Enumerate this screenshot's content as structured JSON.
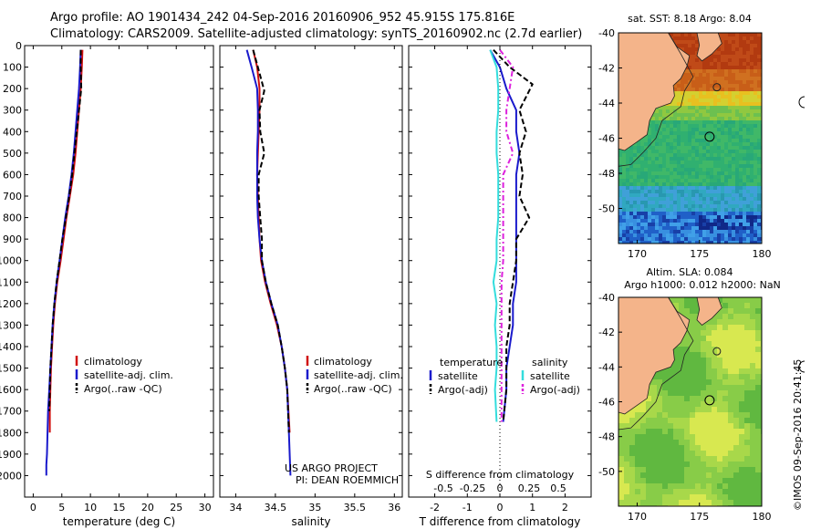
{
  "header": {
    "title_line1": "Argo profile: AO 1901434_242 04-Sep-2016 20160906_952 45.915S 175.816E",
    "title_line2": "Climatology: CARS2009. Satellite-adjusted climatology: synTS_20160902.nc (2.7d earlier)"
  },
  "credits": {
    "line1": "US ARGO PROJECT",
    "line2": "PI: DEAN ROEMMICH"
  },
  "stamp": "©IMOS 09-Sep-2016 20:41:45",
  "colors": {
    "climatology": "#d01010",
    "satellite": "#1a1acc",
    "argo": "#000000",
    "cyan": "#33dddd",
    "magenta": "#dd22dd",
    "land": "#f4b48a"
  },
  "chart_data": [
    {
      "id": "temperature",
      "type": "line",
      "xlabel": "temperature (deg C)",
      "xlim": [
        -1.5,
        31.5
      ],
      "xticks": [
        0,
        5,
        10,
        15,
        20,
        25,
        30
      ],
      "ylim": [
        2100,
        0
      ],
      "yticks": [
        0,
        100,
        200,
        300,
        400,
        500,
        600,
        700,
        800,
        900,
        1000,
        1100,
        1200,
        1300,
        1400,
        1500,
        1600,
        1700,
        1800,
        1900,
        2000
      ],
      "legend": [
        "climatology",
        "satellite-adj. clim.",
        "Argo(..raw -QC)"
      ],
      "series": [
        {
          "name": "climatology",
          "color": "red",
          "style": "solid",
          "x": [
            8.6,
            8.5,
            8.3,
            8.0,
            7.7,
            7.4,
            7.0,
            6.4,
            5.8,
            5.3,
            4.8,
            4.2,
            3.8,
            3.5,
            3.3,
            3.1,
            3.0,
            2.9,
            2.9
          ],
          "y": [
            20,
            100,
            200,
            300,
            400,
            500,
            600,
            700,
            800,
            900,
            1000,
            1100,
            1200,
            1300,
            1400,
            1500,
            1600,
            1700,
            1800
          ]
        },
        {
          "name": "satellite-adj. clim.",
          "color": "blue",
          "style": "solid",
          "x": [
            8.3,
            8.2,
            8.0,
            7.7,
            7.4,
            7.1,
            6.7,
            6.2,
            5.6,
            5.1,
            4.6,
            4.1,
            3.7,
            3.4,
            3.2,
            3.0,
            2.8,
            2.6,
            2.5,
            2.4,
            2.3,
            2.3
          ],
          "y": [
            20,
            100,
            200,
            300,
            400,
            500,
            600,
            700,
            800,
            900,
            1000,
            1100,
            1200,
            1300,
            1400,
            1500,
            1600,
            1700,
            1800,
            1900,
            1950,
            2000
          ]
        },
        {
          "name": "Argo(..raw -QC)",
          "color": "black",
          "style": "dash",
          "x": [
            8.3,
            8.3,
            8.4,
            8.0,
            7.6,
            7.2,
            6.8,
            6.3,
            5.7,
            5.1,
            4.6,
            4.1,
            3.7,
            3.4,
            3.2,
            3.0,
            2.9,
            2.8
          ],
          "y": [
            20,
            100,
            200,
            300,
            400,
            500,
            600,
            700,
            800,
            900,
            1000,
            1100,
            1200,
            1300,
            1400,
            1500,
            1600,
            1700
          ]
        }
      ]
    },
    {
      "id": "salinity",
      "type": "line",
      "xlabel": "salinity",
      "xlim": [
        33.8,
        36.1
      ],
      "xticks": [
        34,
        34.5,
        35,
        35.5,
        36
      ],
      "ylim": [
        2100,
        0
      ],
      "legend": [
        "climatology",
        "satellite-adj. clim.",
        "Argo(..raw -QC)"
      ],
      "series": [
        {
          "name": "climatology",
          "color": "red",
          "style": "solid",
          "x": [
            34.22,
            34.27,
            34.3,
            34.3,
            34.29,
            34.28,
            34.27,
            34.28,
            34.29,
            34.3,
            34.32,
            34.37,
            34.44,
            34.52,
            34.58,
            34.62,
            34.65,
            34.68
          ],
          "y": [
            20,
            100,
            200,
            300,
            400,
            500,
            600,
            700,
            800,
            900,
            1000,
            1100,
            1200,
            1300,
            1400,
            1500,
            1600,
            1800
          ]
        },
        {
          "name": "satellite-adj. clim.",
          "color": "blue",
          "style": "solid",
          "x": [
            34.14,
            34.2,
            34.27,
            34.28,
            34.28,
            34.27,
            34.27,
            34.27,
            34.28,
            34.3,
            34.33,
            34.38,
            34.45,
            34.53,
            34.58,
            34.62,
            34.65,
            34.67,
            34.69
          ],
          "y": [
            20,
            100,
            200,
            300,
            400,
            500,
            600,
            700,
            800,
            900,
            1000,
            1100,
            1200,
            1300,
            1400,
            1500,
            1600,
            1800,
            2000
          ]
        },
        {
          "name": "Argo(..raw -QC)",
          "color": "black",
          "style": "dash",
          "x": [
            34.22,
            34.28,
            34.36,
            34.3,
            34.31,
            34.36,
            34.29,
            34.29,
            34.31,
            34.33,
            34.33,
            34.38,
            34.45,
            34.53,
            34.58,
            34.62,
            34.65,
            34.67
          ],
          "y": [
            20,
            100,
            210,
            300,
            400,
            500,
            600,
            700,
            800,
            900,
            1000,
            1100,
            1200,
            1300,
            1400,
            1500,
            1600,
            1800
          ]
        }
      ]
    },
    {
      "id": "difference",
      "type": "line",
      "xlabel": "T difference from climatology",
      "xlabel_top": "S difference from climatology",
      "xlim": [
        -2.8,
        2.8
      ],
      "xticks": [
        -2,
        -1,
        0,
        1,
        2
      ],
      "s_ticks": [
        "-0.5",
        "-0.25",
        "0",
        "0.25",
        "0.5"
      ],
      "ylim": [
        2100,
        0
      ],
      "legend_heading_t": "temperature",
      "legend_heading_s": "salinity",
      "legend": [
        "satellite",
        "Argo(-adj)",
        "satellite",
        "Argo(-adj)"
      ],
      "series": [
        {
          "name": "satellite",
          "group": "temperature",
          "color": "blue",
          "style": "solid",
          "x": [
            -0.3,
            0.0,
            0.2,
            0.5,
            0.5,
            0.6,
            0.5,
            0.5,
            0.5,
            0.5,
            0.5,
            0.5,
            0.4,
            0.4,
            0.3,
            0.2,
            0.2,
            0.1
          ],
          "y": [
            20,
            100,
            200,
            300,
            400,
            500,
            600,
            700,
            800,
            900,
            1000,
            1100,
            1200,
            1300,
            1400,
            1500,
            1600,
            1750
          ]
        },
        {
          "name": "Argo(-adj)",
          "group": "temperature",
          "color": "black",
          "style": "dash",
          "x": [
            -0.2,
            0.3,
            1.0,
            0.6,
            0.8,
            0.6,
            0.7,
            0.6,
            0.9,
            0.5,
            0.5,
            0.4,
            0.3,
            0.3,
            0.2,
            0.2,
            0.2,
            0.1
          ],
          "y": [
            20,
            100,
            180,
            300,
            400,
            500,
            600,
            700,
            800,
            900,
            1000,
            1100,
            1200,
            1300,
            1400,
            1500,
            1600,
            1750
          ]
        },
        {
          "name": "satellite",
          "group": "salinity",
          "color": "cyan",
          "style": "solid",
          "x": [
            -0.3,
            -0.1,
            -0.05,
            -0.05,
            -0.1,
            -0.1,
            -0.05,
            -0.05,
            -0.05,
            -0.1,
            -0.1,
            -0.2,
            -0.1,
            -0.15,
            -0.1,
            -0.1,
            -0.15,
            -0.1
          ],
          "y": [
            20,
            100,
            200,
            300,
            400,
            500,
            600,
            700,
            800,
            900,
            1000,
            1100,
            1200,
            1300,
            1400,
            1500,
            1600,
            1750
          ]
        },
        {
          "name": "Argo(-adj)",
          "group": "salinity",
          "color": "magenta",
          "style": "dashdot",
          "x": [
            0.0,
            0.4,
            0.3,
            0.2,
            0.2,
            0.4,
            0.1,
            0.1,
            0.1,
            0.1,
            0.1,
            0.05,
            0.05,
            0.05,
            0.05,
            0.05,
            0.05,
            0.05
          ],
          "y": [
            20,
            100,
            200,
            300,
            400,
            500,
            600,
            700,
            800,
            900,
            1000,
            1100,
            1200,
            1300,
            1400,
            1500,
            1600,
            1750
          ]
        }
      ]
    },
    {
      "id": "sst-map",
      "type": "heatmap",
      "title": "sat. SST: 8.18 Argo: 8.04",
      "xlim": [
        168.5,
        180
      ],
      "ylim": [
        -52,
        -40
      ],
      "xticks": [
        170,
        175,
        180
      ],
      "yticks": [
        -40,
        -42,
        -44,
        -46,
        -48,
        -50
      ],
      "argo_position": [
        175.816,
        -45.915
      ]
    },
    {
      "id": "sla-map",
      "type": "heatmap",
      "title_line1": "Altim. SLA: 0.084",
      "title_line2": "Argo h1000: 0.012 h2000: NaN",
      "xlim": [
        168.5,
        180
      ],
      "ylim": [
        -52,
        -40
      ],
      "xticks": [
        170,
        175,
        180
      ],
      "yticks": [
        -40,
        -42,
        -44,
        -46,
        -48,
        -50
      ],
      "argo_position": [
        175.816,
        -45.915
      ]
    }
  ]
}
